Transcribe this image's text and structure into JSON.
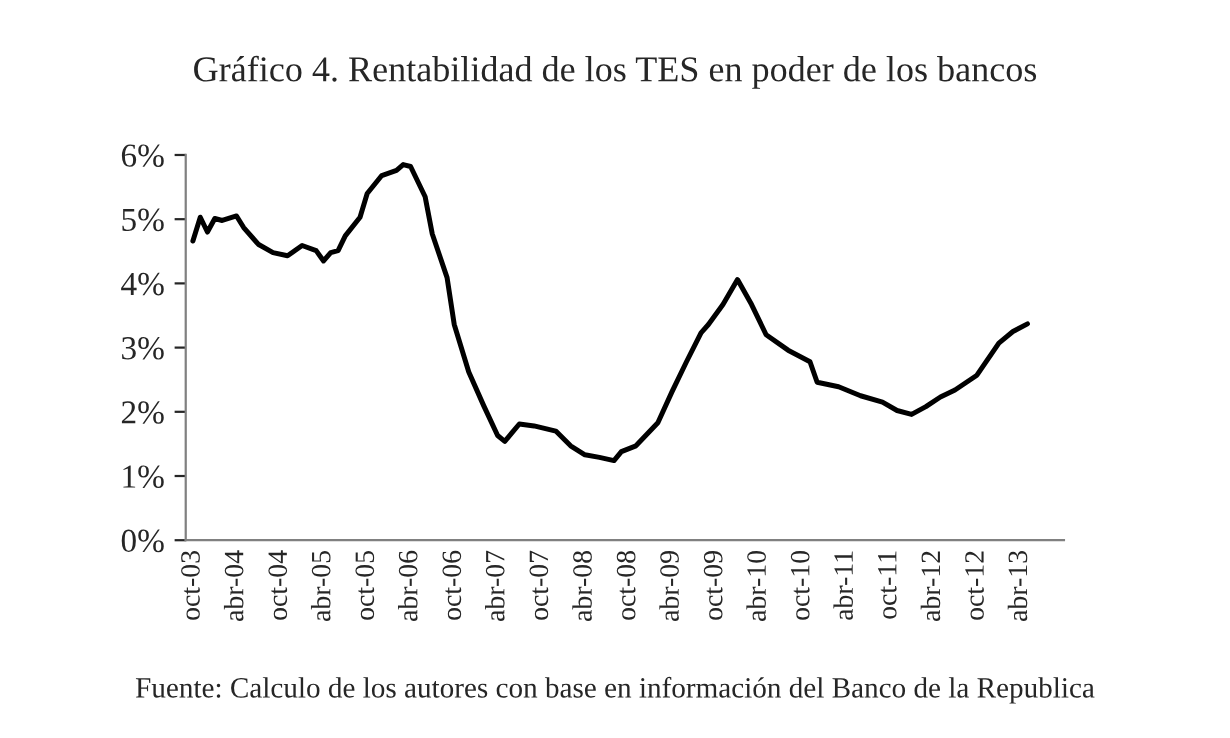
{
  "chart_data": {
    "type": "line",
    "title": "Gráfico 4. Rentabilidad de los TES en poder de los bancos",
    "x": [
      "2003-10",
      "2003-11",
      "2003-12",
      "2004-01",
      "2004-02",
      "2004-04",
      "2004-05",
      "2004-07",
      "2004-09",
      "2004-11",
      "2005-01",
      "2005-03",
      "2005-04",
      "2005-05",
      "2005-06",
      "2005-07",
      "2005-09",
      "2005-10",
      "2005-12",
      "2006-02",
      "2006-03",
      "2006-04",
      "2006-06",
      "2006-07",
      "2006-09",
      "2006-10",
      "2006-12",
      "2007-02",
      "2007-04",
      "2007-05",
      "2007-07",
      "2007-09",
      "2007-12",
      "2008-02",
      "2008-04",
      "2008-06",
      "2008-08",
      "2008-09",
      "2008-11",
      "2009-02",
      "2009-04",
      "2009-06",
      "2009-08",
      "2009-09",
      "2009-11",
      "2010-01",
      "2010-03",
      "2010-05",
      "2010-08",
      "2010-11",
      "2010-12",
      "2011-03",
      "2011-06",
      "2011-09",
      "2011-11",
      "2012-01",
      "2012-03",
      "2012-05",
      "2012-07",
      "2012-10",
      "2013-01",
      "2013-03",
      "2013-05"
    ],
    "series": [
      {
        "color": "#000000",
        "values": [
          4.66,
          5.03,
          4.8,
          5.01,
          4.98,
          5.05,
          4.87,
          4.61,
          4.48,
          4.43,
          4.59,
          4.51,
          4.35,
          4.48,
          4.51,
          4.74,
          5.03,
          5.4,
          5.68,
          5.76,
          5.85,
          5.82,
          5.35,
          4.77,
          4.09,
          3.36,
          2.62,
          2.1,
          1.63,
          1.54,
          1.81,
          1.78,
          1.7,
          1.47,
          1.33,
          1.29,
          1.24,
          1.38,
          1.47,
          1.83,
          2.31,
          2.78,
          3.23,
          3.36,
          3.67,
          4.06,
          3.67,
          3.2,
          2.96,
          2.78,
          2.46,
          2.39,
          2.25,
          2.15,
          2.02,
          1.96,
          2.08,
          2.23,
          2.34,
          2.57,
          3.07,
          3.25,
          3.37
        ]
      }
    ],
    "xlim": [
      "2003-09",
      "2013-10"
    ],
    "xticks": [
      {
        "value": "2003-10",
        "label": "oct-03"
      },
      {
        "value": "2004-04",
        "label": "abr-04"
      },
      {
        "value": "2004-10",
        "label": "oct-04"
      },
      {
        "value": "2005-04",
        "label": "abr-05"
      },
      {
        "value": "2005-10",
        "label": "oct-05"
      },
      {
        "value": "2006-04",
        "label": "abr-06"
      },
      {
        "value": "2006-10",
        "label": "oct-06"
      },
      {
        "value": "2007-04",
        "label": "abr-07"
      },
      {
        "value": "2007-10",
        "label": "oct-07"
      },
      {
        "value": "2008-04",
        "label": "abr-08"
      },
      {
        "value": "2008-10",
        "label": "oct-08"
      },
      {
        "value": "2009-04",
        "label": "abr-09"
      },
      {
        "value": "2009-10",
        "label": "oct-09"
      },
      {
        "value": "2010-04",
        "label": "abr-10"
      },
      {
        "value": "2010-10",
        "label": "oct-10"
      },
      {
        "value": "2011-04",
        "label": "abr-11"
      },
      {
        "value": "2011-10",
        "label": "oct-11"
      },
      {
        "value": "2012-04",
        "label": "abr-12"
      },
      {
        "value": "2012-10",
        "label": "oct-12"
      },
      {
        "value": "2013-04",
        "label": "abr-13"
      }
    ],
    "ylim": [
      0,
      6
    ],
    "yticks": [
      {
        "value": 0,
        "label": "0%"
      },
      {
        "value": 1,
        "label": "1%"
      },
      {
        "value": 2,
        "label": "2%"
      },
      {
        "value": 3,
        "label": "3%"
      },
      {
        "value": 4,
        "label": "4%"
      },
      {
        "value": 5,
        "label": "5%"
      },
      {
        "value": 6,
        "label": "6%"
      }
    ],
    "grid": false,
    "marker": "none",
    "line_style": "solid",
    "annotations": [
      "Fuente: Calculo de los autores con base en información del Banco de la Republica"
    ]
  }
}
